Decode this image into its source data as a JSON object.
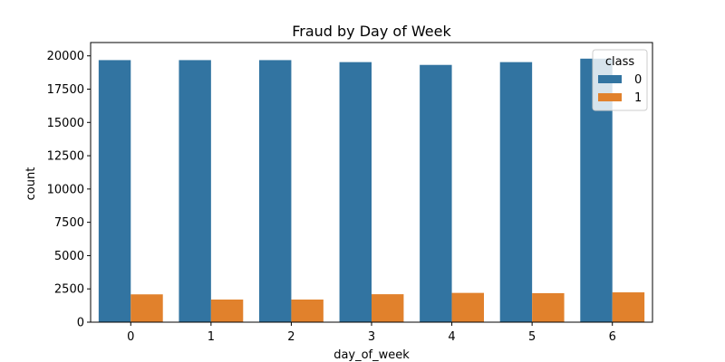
{
  "chart_data": {
    "type": "bar",
    "title": "Fraud by Day of Week",
    "xlabel": "day_of_week",
    "ylabel": "count",
    "categories": [
      "0",
      "1",
      "2",
      "3",
      "4",
      "5",
      "6"
    ],
    "ylim": [
      0,
      21000
    ],
    "yticks": [
      0,
      2500,
      5000,
      7500,
      10000,
      12500,
      15000,
      17500,
      20000
    ],
    "ytick_labels": [
      "0",
      "2500",
      "5000",
      "7500",
      "10000",
      "12500",
      "15000",
      "17500",
      "20000"
    ],
    "grid": false,
    "legend": {
      "title": "class",
      "placement": "top-right"
    },
    "series": [
      {
        "name": "0",
        "color": "#3274a1",
        "values": [
          19680,
          19680,
          19680,
          19530,
          19320,
          19530,
          19790
        ]
      },
      {
        "name": "1",
        "color": "#e1812c",
        "values": [
          2090,
          1700,
          1700,
          2100,
          2200,
          2180,
          2240
        ]
      }
    ]
  }
}
